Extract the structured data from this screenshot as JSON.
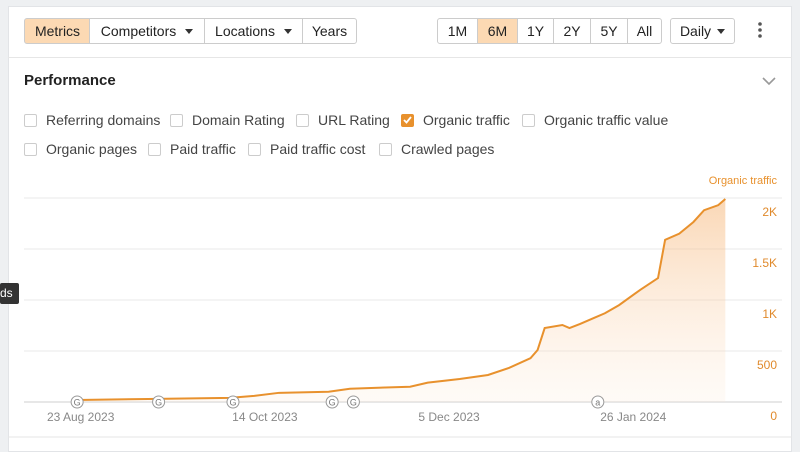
{
  "toolbar": {
    "tabs": [
      {
        "label": "Metrics",
        "active": true,
        "menu": false
      },
      {
        "label": "Competitors",
        "active": false,
        "menu": true
      },
      {
        "label": "Locations",
        "active": false,
        "menu": true
      },
      {
        "label": "Years",
        "active": false,
        "menu": false
      }
    ],
    "ranges": [
      {
        "label": "1M",
        "active": false
      },
      {
        "label": "6M",
        "active": true
      },
      {
        "label": "1Y",
        "active": false
      },
      {
        "label": "2Y",
        "active": false
      },
      {
        "label": "5Y",
        "active": false
      },
      {
        "label": "All",
        "active": false
      }
    ],
    "granularity": "Daily"
  },
  "section": {
    "title": "Performance"
  },
  "filters": [
    [
      {
        "label": "Referring domains",
        "checked": false
      },
      {
        "label": "Domain Rating",
        "checked": false
      },
      {
        "label": "URL Rating",
        "checked": false
      },
      {
        "label": "Organic traffic",
        "checked": true
      },
      {
        "label": "Organic traffic value",
        "checked": false
      }
    ],
    [
      {
        "label": "Organic pages",
        "checked": false
      },
      {
        "label": "Paid traffic",
        "checked": false
      },
      {
        "label": "Paid traffic cost",
        "checked": false
      },
      {
        "label": "Crawled pages",
        "checked": false
      }
    ]
  ],
  "tooltip_fragment": "ds",
  "chart_data": {
    "type": "area",
    "x": [
      "2023-08-22",
      "2023-09-11",
      "2023-10-04",
      "2023-10-11",
      "2023-10-18",
      "2023-11-01",
      "2023-11-07",
      "2023-11-15",
      "2023-11-24",
      "2023-11-29",
      "2023-12-08",
      "2023-12-16",
      "2023-12-22",
      "2023-12-28",
      "2023-12-30",
      "2024-01-01",
      "2024-01-06",
      "2024-01-08",
      "2024-01-11",
      "2024-01-15",
      "2024-01-18",
      "2024-01-22",
      "2024-01-28",
      "2024-02-02",
      "2024-02-04",
      "2024-02-08",
      "2024-02-12",
      "2024-02-15",
      "2024-02-19",
      "2024-02-21"
    ],
    "series": [
      {
        "name": "Organic traffic",
        "color": "#e8912d",
        "values": [
          20,
          30,
          40,
          60,
          90,
          100,
          130,
          140,
          150,
          190,
          225,
          265,
          335,
          430,
          510,
          725,
          755,
          725,
          765,
          825,
          870,
          950,
          1100,
          1215,
          1590,
          1650,
          1765,
          1880,
          1930,
          1990
        ]
      }
    ],
    "xlim": [
      "2023-08-07",
      "2024-03-08"
    ],
    "xticks": [
      {
        "value": "2023-08-23",
        "label": "23 Aug 2023"
      },
      {
        "value": "2023-10-14",
        "label": "14 Oct 2023"
      },
      {
        "value": "2023-12-05",
        "label": "5 Dec 2023"
      },
      {
        "value": "2024-01-26",
        "label": "26 Jan 2024"
      }
    ],
    "ylim": [
      0,
      2000
    ],
    "yticks": [
      0,
      500,
      {
        "value": 1000,
        "label": "1K"
      },
      {
        "value": 1500,
        "label": "1.5K"
      },
      {
        "value": 2000,
        "label": "2K"
      }
    ],
    "grid": true,
    "events": [
      {
        "x": "2023-08-22",
        "label": "G"
      },
      {
        "x": "2023-09-14",
        "label": "G"
      },
      {
        "x": "2023-10-05",
        "label": "G"
      },
      {
        "x": "2023-11-02",
        "label": "G"
      },
      {
        "x": "2023-11-08",
        "label": "G"
      },
      {
        "x": "2024-01-16",
        "label": "a"
      }
    ]
  }
}
